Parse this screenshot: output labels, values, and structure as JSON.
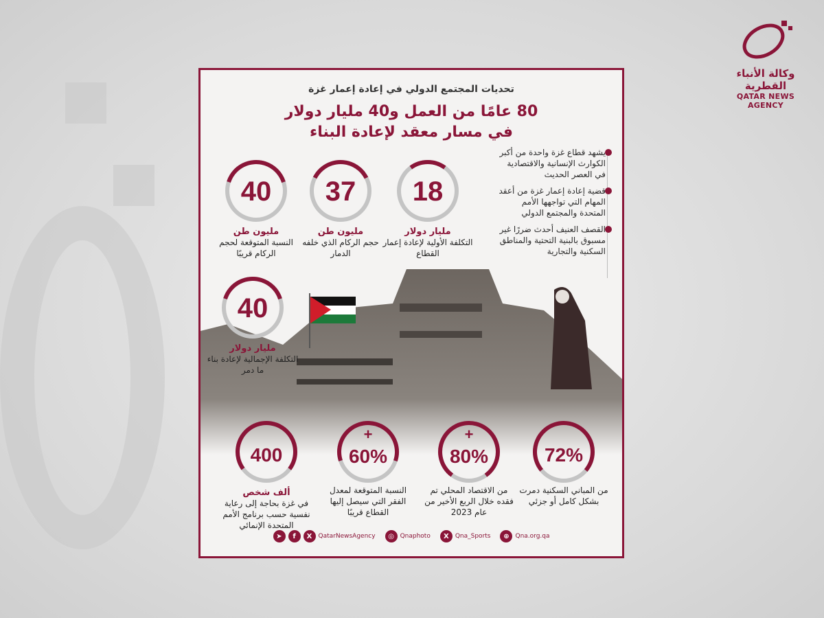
{
  "brand": {
    "name_ar": "وكالة الأنباء القطرية",
    "name_en": "QATAR NEWS AGENCY",
    "color": "#8a1538"
  },
  "header": {
    "subtitle": "تحديات المجتمع الدولي في إعادة إعمار غزة",
    "title_line1": "80 عامًا من العمل و40 مليار دولار",
    "title_line2": "في مسار معقد لإعادة البناء"
  },
  "bullets": [
    {
      "text": "يشهد قطاع غزة واحدة من أكبر الكوارث الإنسانية والاقتصادية في العصر الحديث"
    },
    {
      "text": "قضية إعادة إعمار غزة من أعقد المهام التي تواجهها الأمم المتحدة والمجتمع الدولي"
    },
    {
      "text": "القصف العنيف أحدث ضررًا غير مسبوق بالبنية التحتية والمناطق السكنية والتجارية"
    }
  ],
  "stats_top": [
    {
      "value": "18",
      "unit": "مليار دولار",
      "desc": "التكلفة الأولية لإعادة إعمار القطاع",
      "ring_fill": 0.2
    },
    {
      "value": "37",
      "unit": "مليون طن",
      "desc": "حجم الركام الذي خلفه الدمار",
      "ring_fill": 0.35
    },
    {
      "value": "40",
      "unit": "مليون طن",
      "desc": "النسبة المتوقعة لحجم الركام قريبًا",
      "ring_fill": 0.4
    }
  ],
  "stat_total": {
    "value": "40",
    "unit": "مليار دولار",
    "desc": "التكلفة الإجمالية لإعادة بناء ما دمر",
    "ring_fill": 0.4
  },
  "stats_bottom": [
    {
      "value": "72%",
      "prefix": "",
      "unit": "",
      "desc": "من المباني السكنية دمرت بشكل كامل أو جزئي",
      "ring_fill": 0.72
    },
    {
      "value": "80%",
      "prefix": "+",
      "unit": "",
      "desc": "من الاقتصاد المحلي تم فقده خلال الربع الأخير من عام 2023",
      "ring_fill": 0.8
    },
    {
      "value": "60%",
      "prefix": "+",
      "unit": "",
      "desc": "النسبة المتوقعة لمعدل الفقر التي سيصل إليها القطاع قريبًا",
      "ring_fill": 0.6
    },
    {
      "value": "400",
      "prefix": "",
      "unit": "ألف شخص",
      "desc": "في غزة بحاجة إلى رعاية نفسية حسب برنامج الأمم المتحدة الإنمائي",
      "ring_fill": 0.7
    }
  ],
  "footer": {
    "handle1": "QatarNewsAgency",
    "handle2": "Qnaphoto",
    "handle3": "Qna_Sports",
    "website": "Qna.org.qa",
    "icons": [
      "telegram-icon",
      "facebook-icon",
      "x-icon",
      "instagram-icon",
      "x-icon",
      "globe-icon"
    ]
  }
}
